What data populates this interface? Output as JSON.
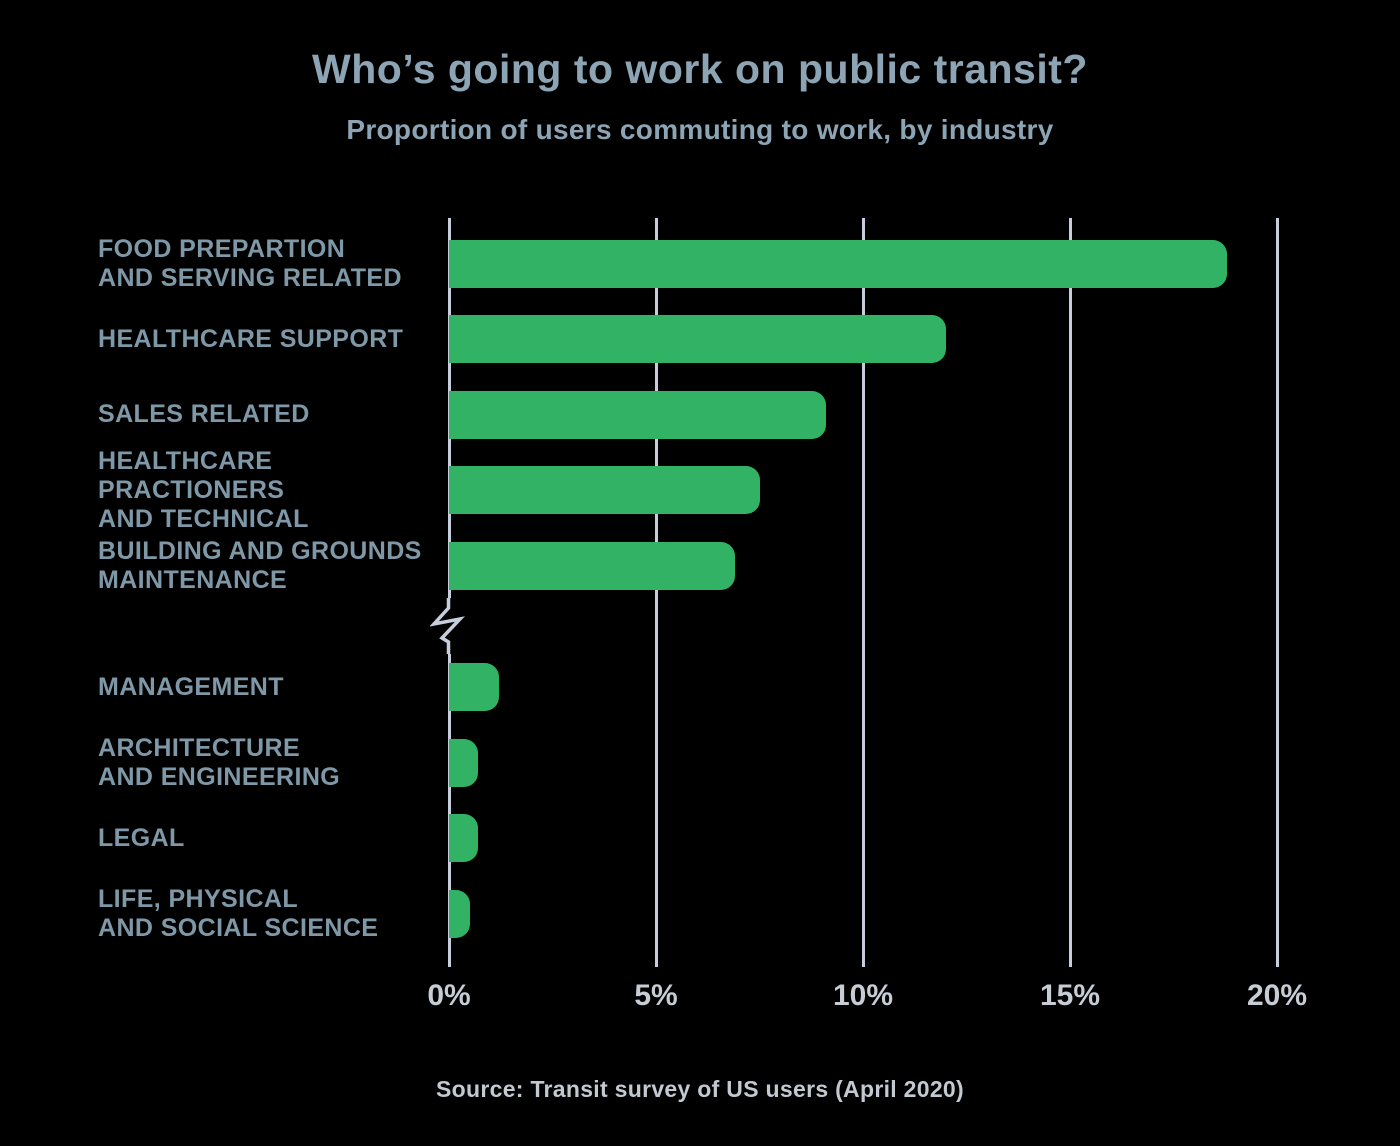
{
  "header": {
    "title": "Who’s going to work on public transit?",
    "subtitle": "Proportion of users commuting to work, by industry"
  },
  "footer": {
    "source": "Source: Transit survey of US users (April 2020)"
  },
  "colors": {
    "bar_green": "#32b264",
    "title_text": "#8ca4b4",
    "label_text": "#7f98a8",
    "grid_line": "#c7cedb",
    "tick_text": "#c6cdd5",
    "source_text": "#c2c9d1",
    "background": "#000000"
  },
  "chart_data": {
    "type": "bar",
    "orientation": "horizontal",
    "title": "Who’s going to work on public transit?",
    "subtitle": "Proportion of users commuting to work, by industry",
    "unit": "%",
    "xlim": [
      0,
      20
    ],
    "x_ticks": [
      "0%",
      "5%",
      "10%",
      "15%",
      "20%"
    ],
    "grid": "vertical-gridlines-on",
    "legend": "none",
    "axis_break": {
      "present": true,
      "between": "BUILDING AND GROUNDS MAINTENANCE",
      "and": "MANAGEMENT"
    },
    "groups": [
      {
        "name": "high-proportion",
        "items": [
          {
            "label_lines": [
              "FOOD PREPARTION",
              "AND SERVING RELATED"
            ],
            "value": 18.8
          },
          {
            "label_lines": [
              "HEALTHCARE SUPPORT"
            ],
            "value": 12.0
          },
          {
            "label_lines": [
              "SALES RELATED"
            ],
            "value": 9.1
          },
          {
            "label_lines": [
              "HEALTHCARE PRACTIONERS",
              "AND TECHNICAL"
            ],
            "value": 7.5
          },
          {
            "label_lines": [
              "BUILDING AND GROUNDS",
              "MAINTENANCE"
            ],
            "value": 6.9
          }
        ]
      },
      {
        "name": "low-proportion",
        "items": [
          {
            "label_lines": [
              "MANAGEMENT"
            ],
            "value": 1.2
          },
          {
            "label_lines": [
              "ARCHITECTURE",
              "AND ENGINEERING"
            ],
            "value": 0.7
          },
          {
            "label_lines": [
              "LEGAL"
            ],
            "value": 0.7
          },
          {
            "label_lines": [
              "LIFE, PHYSICAL",
              "AND SOCIAL SCIENCE"
            ],
            "value": 0.5
          }
        ]
      }
    ]
  }
}
